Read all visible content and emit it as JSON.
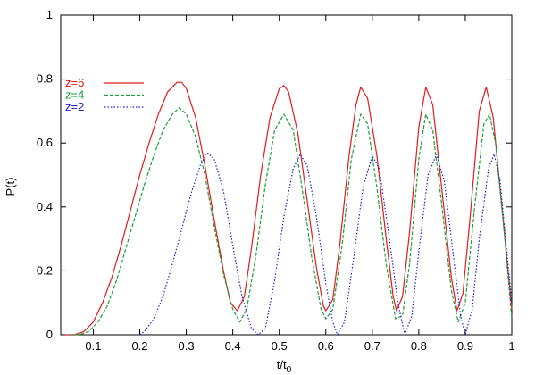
{
  "chart_data": {
    "type": "line",
    "title": "",
    "xlabel": "t/t",
    "xlabel_sub": "0",
    "ylabel": "P(t)",
    "xlim": [
      0.03,
      1.0
    ],
    "ylim": [
      0,
      1
    ],
    "xticks": [
      {
        "value": 0.1,
        "label": "0.1"
      },
      {
        "value": 0.2,
        "label": "0.2"
      },
      {
        "value": 0.3,
        "label": "0.3"
      },
      {
        "value": 0.4,
        "label": "0.4"
      },
      {
        "value": 0.5,
        "label": "0.5"
      },
      {
        "value": 0.6,
        "label": "0.6"
      },
      {
        "value": 0.7,
        "label": "0.7"
      },
      {
        "value": 0.8,
        "label": "0.8"
      },
      {
        "value": 0.9,
        "label": "0.9"
      },
      {
        "value": 1.0,
        "label": "1"
      }
    ],
    "yticks": [
      {
        "value": 0,
        "label": "0"
      },
      {
        "value": 0.2,
        "label": "0.2"
      },
      {
        "value": 0.4,
        "label": "0.4"
      },
      {
        "value": 0.6,
        "label": "0.6"
      },
      {
        "value": 0.8,
        "label": "0.8"
      },
      {
        "value": 1.0,
        "label": "1"
      }
    ],
    "grid": false,
    "legend": "top-left",
    "series": [
      {
        "name": "z=6",
        "color": "#e41a1c",
        "dash": "solid",
        "points": [
          [
            0.04,
            0.0
          ],
          [
            0.06,
            0.0
          ],
          [
            0.08,
            0.01
          ],
          [
            0.1,
            0.04
          ],
          [
            0.12,
            0.1
          ],
          [
            0.14,
            0.18
          ],
          [
            0.16,
            0.28
          ],
          [
            0.18,
            0.39
          ],
          [
            0.2,
            0.5
          ],
          [
            0.22,
            0.6
          ],
          [
            0.24,
            0.69
          ],
          [
            0.26,
            0.76
          ],
          [
            0.28,
            0.79
          ],
          [
            0.29,
            0.79
          ],
          [
            0.3,
            0.77
          ],
          [
            0.32,
            0.68
          ],
          [
            0.34,
            0.53
          ],
          [
            0.36,
            0.36
          ],
          [
            0.38,
            0.2
          ],
          [
            0.395,
            0.1
          ],
          [
            0.41,
            0.075
          ],
          [
            0.425,
            0.12
          ],
          [
            0.44,
            0.27
          ],
          [
            0.46,
            0.5
          ],
          [
            0.48,
            0.68
          ],
          [
            0.5,
            0.77
          ],
          [
            0.51,
            0.78
          ],
          [
            0.52,
            0.76
          ],
          [
            0.54,
            0.63
          ],
          [
            0.56,
            0.42
          ],
          [
            0.58,
            0.21
          ],
          [
            0.595,
            0.09
          ],
          [
            0.6,
            0.075
          ],
          [
            0.615,
            0.11
          ],
          [
            0.63,
            0.28
          ],
          [
            0.65,
            0.56
          ],
          [
            0.665,
            0.72
          ],
          [
            0.675,
            0.775
          ],
          [
            0.69,
            0.74
          ],
          [
            0.71,
            0.56
          ],
          [
            0.73,
            0.3
          ],
          [
            0.745,
            0.12
          ],
          [
            0.752,
            0.075
          ],
          [
            0.765,
            0.12
          ],
          [
            0.78,
            0.32
          ],
          [
            0.8,
            0.65
          ],
          [
            0.815,
            0.775
          ],
          [
            0.83,
            0.72
          ],
          [
            0.85,
            0.45
          ],
          [
            0.87,
            0.18
          ],
          [
            0.882,
            0.075
          ],
          [
            0.895,
            0.13
          ],
          [
            0.91,
            0.36
          ],
          [
            0.93,
            0.7
          ],
          [
            0.945,
            0.775
          ],
          [
            0.96,
            0.68
          ],
          [
            0.98,
            0.38
          ],
          [
            1.0,
            0.08
          ]
        ]
      },
      {
        "name": "z=4",
        "color": "#1a9e3c",
        "dash": "4,2",
        "points": [
          [
            0.05,
            0.0
          ],
          [
            0.07,
            0.0
          ],
          [
            0.09,
            0.01
          ],
          [
            0.11,
            0.04
          ],
          [
            0.13,
            0.09
          ],
          [
            0.15,
            0.17
          ],
          [
            0.17,
            0.27
          ],
          [
            0.19,
            0.37
          ],
          [
            0.21,
            0.47
          ],
          [
            0.23,
            0.56
          ],
          [
            0.25,
            0.64
          ],
          [
            0.27,
            0.69
          ],
          [
            0.285,
            0.71
          ],
          [
            0.3,
            0.69
          ],
          [
            0.32,
            0.62
          ],
          [
            0.34,
            0.5
          ],
          [
            0.36,
            0.34
          ],
          [
            0.38,
            0.19
          ],
          [
            0.4,
            0.08
          ],
          [
            0.415,
            0.04
          ],
          [
            0.43,
            0.08
          ],
          [
            0.45,
            0.25
          ],
          [
            0.47,
            0.47
          ],
          [
            0.49,
            0.64
          ],
          [
            0.51,
            0.69
          ],
          [
            0.53,
            0.64
          ],
          [
            0.55,
            0.45
          ],
          [
            0.57,
            0.24
          ],
          [
            0.59,
            0.08
          ],
          [
            0.6,
            0.05
          ],
          [
            0.615,
            0.08
          ],
          [
            0.635,
            0.28
          ],
          [
            0.655,
            0.55
          ],
          [
            0.675,
            0.69
          ],
          [
            0.69,
            0.66
          ],
          [
            0.71,
            0.46
          ],
          [
            0.73,
            0.22
          ],
          [
            0.75,
            0.05
          ],
          [
            0.765,
            0.06
          ],
          [
            0.78,
            0.22
          ],
          [
            0.8,
            0.55
          ],
          [
            0.815,
            0.69
          ],
          [
            0.83,
            0.64
          ],
          [
            0.85,
            0.4
          ],
          [
            0.87,
            0.14
          ],
          [
            0.885,
            0.04
          ],
          [
            0.9,
            0.1
          ],
          [
            0.92,
            0.4
          ],
          [
            0.94,
            0.66
          ],
          [
            0.952,
            0.69
          ],
          [
            0.965,
            0.6
          ],
          [
            0.985,
            0.3
          ],
          [
            1.0,
            0.05
          ]
        ]
      },
      {
        "name": "z=2",
        "color": "#1f1fcc",
        "dash": "1.5,2",
        "points": [
          [
            0.2,
            0.0
          ],
          [
            0.21,
            0.01
          ],
          [
            0.23,
            0.05
          ],
          [
            0.25,
            0.12
          ],
          [
            0.27,
            0.22
          ],
          [
            0.29,
            0.33
          ],
          [
            0.31,
            0.44
          ],
          [
            0.33,
            0.53
          ],
          [
            0.345,
            0.57
          ],
          [
            0.36,
            0.55
          ],
          [
            0.38,
            0.45
          ],
          [
            0.4,
            0.28
          ],
          [
            0.42,
            0.12
          ],
          [
            0.44,
            0.02
          ],
          [
            0.455,
            0.0
          ],
          [
            0.47,
            0.02
          ],
          [
            0.49,
            0.17
          ],
          [
            0.51,
            0.37
          ],
          [
            0.53,
            0.52
          ],
          [
            0.545,
            0.565
          ],
          [
            0.56,
            0.53
          ],
          [
            0.58,
            0.37
          ],
          [
            0.6,
            0.16
          ],
          [
            0.615,
            0.04
          ],
          [
            0.625,
            0.0
          ],
          [
            0.64,
            0.04
          ],
          [
            0.66,
            0.24
          ],
          [
            0.68,
            0.46
          ],
          [
            0.7,
            0.56
          ],
          [
            0.715,
            0.52
          ],
          [
            0.735,
            0.32
          ],
          [
            0.755,
            0.1
          ],
          [
            0.77,
            0.0
          ],
          [
            0.785,
            0.06
          ],
          [
            0.8,
            0.26
          ],
          [
            0.82,
            0.5
          ],
          [
            0.838,
            0.565
          ],
          [
            0.855,
            0.48
          ],
          [
            0.875,
            0.24
          ],
          [
            0.89,
            0.06
          ],
          [
            0.9,
            0.0
          ],
          [
            0.915,
            0.08
          ],
          [
            0.93,
            0.3
          ],
          [
            0.95,
            0.52
          ],
          [
            0.962,
            0.565
          ],
          [
            0.975,
            0.48
          ],
          [
            0.99,
            0.25
          ],
          [
            1.0,
            0.1
          ]
        ]
      }
    ]
  }
}
